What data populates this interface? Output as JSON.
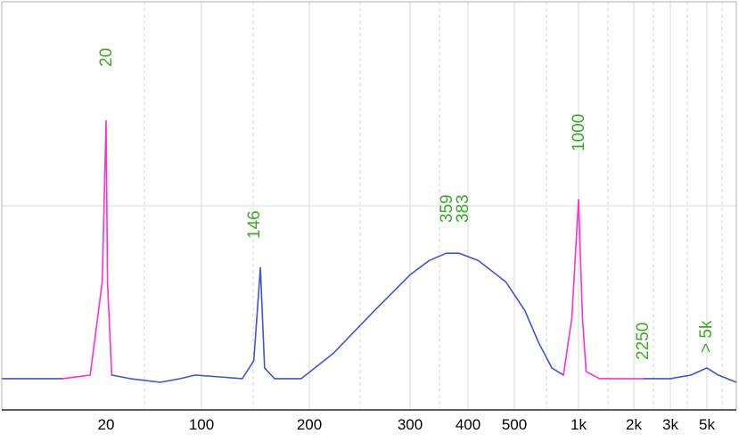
{
  "chart_data": {
    "type": "line",
    "title": "",
    "xlabel": "",
    "ylabel": "",
    "x_scale": "log (electropherogram size axis)",
    "grid": true,
    "grid_style": "light gray, dashed minor verticals",
    "colors": {
      "trace": "#3d55d8",
      "marker_trace": "#ff2ed6",
      "peak_label": "#3caa28",
      "axis": "#000000",
      "grid": "#d9d9d9"
    },
    "tick_labels": [
      "20",
      "100",
      "200",
      "300",
      "400",
      "500",
      "1k",
      "2k",
      "3k",
      "5k"
    ],
    "peak_labels": [
      {
        "label": "20",
        "kind": "marker"
      },
      {
        "label": "146",
        "kind": "fragment"
      },
      {
        "label": "359",
        "kind": "fragment"
      },
      {
        "label": "383",
        "kind": "fragment"
      },
      {
        "label": "1000",
        "kind": "marker"
      },
      {
        "label": "2250",
        "kind": "fragment"
      },
      {
        "label": "> 5k",
        "kind": "fragment"
      }
    ],
    "series": [
      {
        "points": [
          [
            10,
            3
          ],
          [
            15,
            3
          ],
          [
            18,
            4
          ],
          [
            19.5,
            30
          ],
          [
            20,
            75
          ],
          [
            20.5,
            30
          ],
          [
            22,
            4
          ],
          [
            30,
            3
          ],
          [
            50,
            2
          ],
          [
            70,
            3
          ],
          [
            90,
            4
          ],
          [
            130,
            3
          ],
          [
            140,
            8
          ],
          [
            146,
            34
          ],
          [
            150,
            6
          ],
          [
            160,
            3
          ],
          [
            190,
            3
          ],
          [
            220,
            10
          ],
          [
            260,
            22
          ],
          [
            300,
            32
          ],
          [
            330,
            36
          ],
          [
            359,
            38
          ],
          [
            383,
            38
          ],
          [
            420,
            36
          ],
          [
            480,
            30
          ],
          [
            560,
            22
          ],
          [
            650,
            13
          ],
          [
            750,
            6
          ],
          [
            850,
            4
          ],
          [
            930,
            20
          ],
          [
            1000,
            53
          ],
          [
            1050,
            20
          ],
          [
            1100,
            5
          ],
          [
            1300,
            3
          ],
          [
            1700,
            3
          ],
          [
            2250,
            3
          ],
          [
            3000,
            3
          ],
          [
            4000,
            4
          ],
          [
            5000,
            6
          ],
          [
            6000,
            4
          ],
          [
            8000,
            2
          ]
        ]
      }
    ],
    "marker_ranges": [
      [
        18,
        22
      ],
      [
        900,
        2250
      ]
    ]
  }
}
